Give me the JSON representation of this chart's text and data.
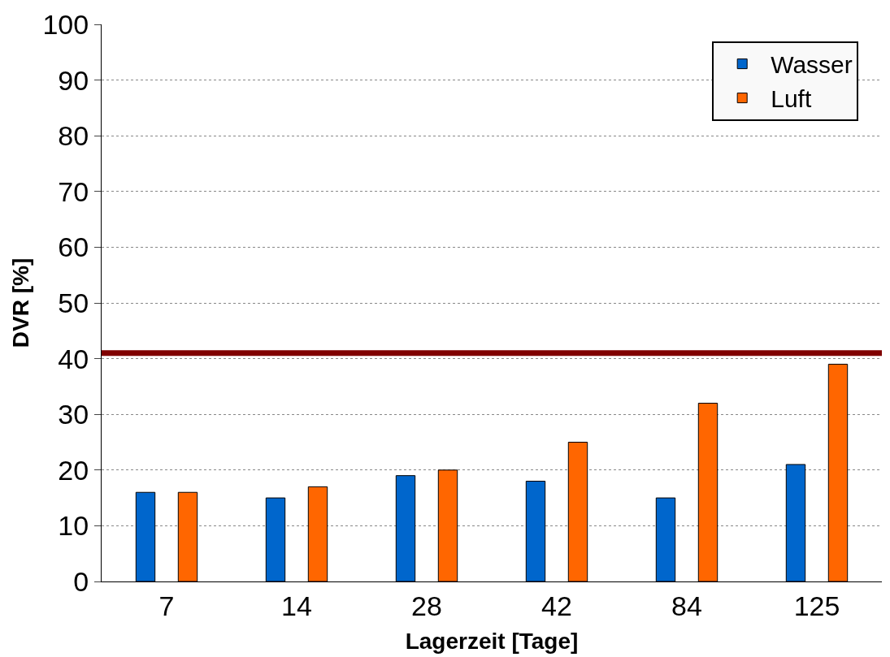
{
  "chart_data": {
    "type": "bar",
    "xlabel": "Lagerzeit [Tage]",
    "ylabel": "DVR [%]",
    "categories": [
      "7",
      "14",
      "28",
      "42",
      "84",
      "125"
    ],
    "series": [
      {
        "name": "Wasser",
        "color": "#0066cc",
        "values": [
          16,
          15,
          19,
          18,
          15,
          21
        ]
      },
      {
        "name": "Luft",
        "color": "#ff6600",
        "values": [
          16,
          17,
          20,
          25,
          32,
          39
        ]
      }
    ],
    "ylim": [
      0,
      100
    ],
    "yticks": [
      0,
      10,
      20,
      30,
      40,
      50,
      60,
      70,
      80,
      90,
      100
    ],
    "ref_lines": [
      {
        "axis": "y",
        "value": 41,
        "color": "#800000"
      }
    ],
    "grid": "y",
    "legend": "top right"
  }
}
